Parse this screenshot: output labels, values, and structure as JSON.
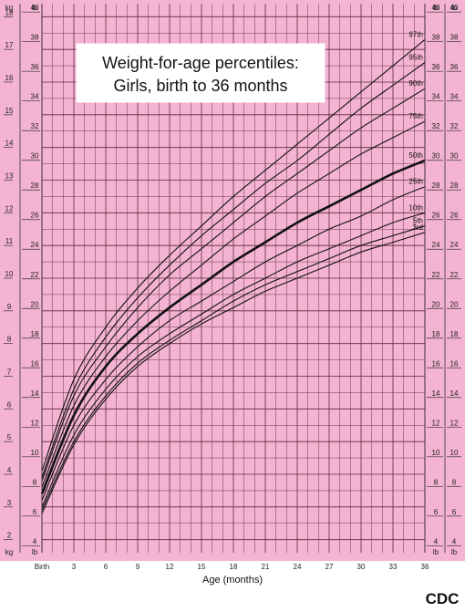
{
  "chart_data": {
    "type": "line",
    "title_lines": [
      "Weight-for-age percentiles:",
      "Girls, birth to 36 months"
    ],
    "xlabel": "Age (months)",
    "x_tick_labels": [
      "Birth",
      "3",
      "6",
      "9",
      "12",
      "15",
      "18",
      "21",
      "24",
      "27",
      "30",
      "33",
      "36"
    ],
    "x_ticks": [
      0,
      3,
      6,
      9,
      12,
      15,
      18,
      21,
      24,
      27,
      30,
      33,
      36
    ],
    "xlim": [
      0,
      36
    ],
    "y_left_unit": "kg",
    "y_right_unit": "lb",
    "ylim_kg": [
      1.6,
      18.4
    ],
    "kg_ticks": [
      2,
      3,
      4,
      5,
      6,
      7,
      8,
      9,
      10,
      11,
      12,
      13,
      14,
      15,
      16,
      17,
      18
    ],
    "lb_ticks": [
      4,
      6,
      8,
      10,
      12,
      14,
      16,
      18,
      20,
      22,
      24,
      26,
      28,
      30,
      32,
      34,
      36,
      38,
      40
    ],
    "grid": true,
    "background_color": "#f4b3d2",
    "grid_color": "#5a2a3a",
    "series": [
      {
        "name": "97th",
        "bold": false,
        "x": [
          0,
          3,
          6,
          9,
          12,
          15,
          18,
          21,
          24,
          27,
          30,
          33,
          36
        ],
        "y": [
          4.1,
          6.9,
          8.5,
          9.7,
          10.7,
          11.6,
          12.5,
          13.3,
          14.1,
          14.9,
          15.7,
          16.5,
          17.3
        ]
      },
      {
        "name": "95th",
        "bold": false,
        "x": [
          0,
          3,
          6,
          9,
          12,
          15,
          18,
          21,
          24,
          27,
          30,
          33,
          36
        ],
        "y": [
          3.9,
          6.6,
          8.2,
          9.4,
          10.4,
          11.3,
          12.1,
          12.9,
          13.6,
          14.4,
          15.2,
          15.9,
          16.6
        ]
      },
      {
        "name": "90th",
        "bold": false,
        "x": [
          0,
          3,
          6,
          9,
          12,
          15,
          18,
          21,
          24,
          27,
          30,
          33,
          36
        ],
        "y": [
          3.8,
          6.4,
          7.9,
          9.1,
          10.1,
          10.9,
          11.7,
          12.5,
          13.2,
          13.9,
          14.6,
          15.2,
          15.8
        ]
      },
      {
        "name": "75th",
        "bold": false,
        "x": [
          0,
          3,
          6,
          9,
          12,
          15,
          18,
          21,
          24,
          27,
          30,
          33,
          36
        ],
        "y": [
          3.6,
          6.1,
          7.6,
          8.7,
          9.6,
          10.4,
          11.2,
          11.9,
          12.6,
          13.2,
          13.8,
          14.3,
          14.8
        ]
      },
      {
        "name": "50th",
        "bold": true,
        "x": [
          0,
          3,
          6,
          9,
          12,
          15,
          18,
          21,
          24,
          27,
          30,
          33,
          36
        ],
        "y": [
          3.4,
          5.8,
          7.3,
          8.3,
          9.1,
          9.8,
          10.5,
          11.1,
          11.7,
          12.2,
          12.7,
          13.2,
          13.6
        ]
      },
      {
        "name": "25th",
        "bold": false,
        "x": [
          0,
          3,
          6,
          9,
          12,
          15,
          18,
          21,
          24,
          27,
          30,
          33,
          36
        ],
        "y": [
          3.2,
          5.5,
          6.9,
          7.9,
          8.7,
          9.3,
          9.9,
          10.5,
          11.0,
          11.5,
          11.9,
          12.4,
          12.8
        ]
      },
      {
        "name": "10th",
        "bold": false,
        "x": [
          0,
          3,
          6,
          9,
          12,
          15,
          18,
          21,
          24,
          27,
          30,
          33,
          36
        ],
        "y": [
          3.0,
          5.2,
          6.6,
          7.6,
          8.3,
          8.9,
          9.5,
          10.0,
          10.5,
          10.9,
          11.3,
          11.7,
          12.0
        ]
      },
      {
        "name": "5th",
        "bold": false,
        "x": [
          0,
          3,
          6,
          9,
          12,
          15,
          18,
          21,
          24,
          27,
          30,
          33,
          36
        ],
        "y": [
          2.9,
          5.0,
          6.4,
          7.4,
          8.1,
          8.7,
          9.3,
          9.8,
          10.2,
          10.6,
          11.0,
          11.3,
          11.6
        ]
      },
      {
        "name": "3rd",
        "bold": false,
        "x": [
          0,
          3,
          6,
          9,
          12,
          15,
          18,
          21,
          24,
          27,
          30,
          33,
          36
        ],
        "y": [
          2.8,
          4.9,
          6.3,
          7.3,
          8.0,
          8.6,
          9.1,
          9.6,
          10.0,
          10.4,
          10.8,
          11.1,
          11.4
        ]
      }
    ]
  },
  "logo": {
    "text": "CDC"
  }
}
